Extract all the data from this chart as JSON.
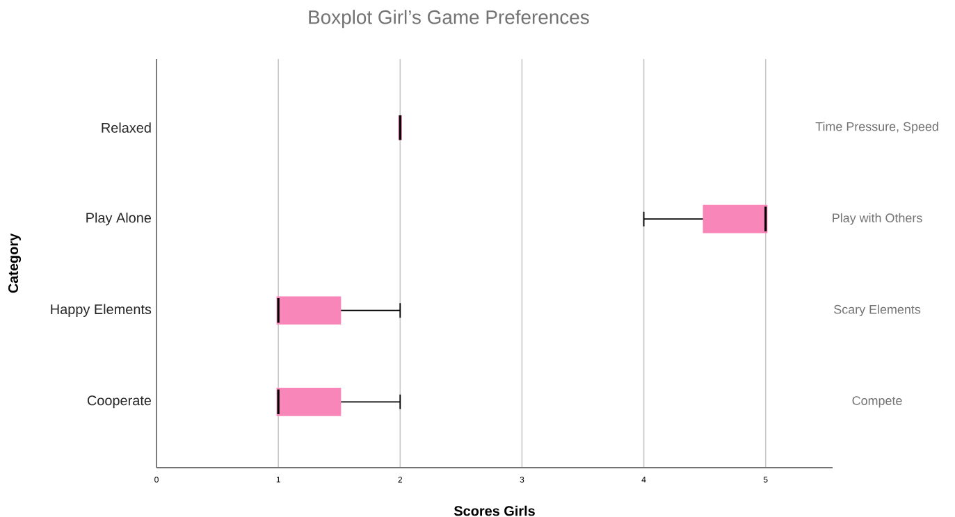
{
  "chart_data": {
    "type": "box",
    "title": "Boxplot Girl’s Game Preferences",
    "xlabel": "Scores Girls",
    "ylabel": "Category",
    "orientation": "horizontal",
    "categories": [
      "Relaxed",
      "Play Alone",
      "Happy Elements",
      "Cooperate"
    ],
    "series": [
      {
        "color": "#f986b8",
        "boxes": [
          {
            "low": 2,
            "q1": 2,
            "median": 2,
            "q3": 2,
            "high": 2
          },
          {
            "low": 4,
            "q1": 4.5,
            "median": 5,
            "q3": 5,
            "high": 5
          },
          {
            "low": 1,
            "q1": 1,
            "median": 1,
            "q3": 1.5,
            "high": 2
          },
          {
            "low": 1,
            "q1": 1,
            "median": 1,
            "q3": 1.5,
            "high": 2
          }
        ]
      }
    ],
    "xlim": [
      0,
      5.55
    ],
    "xticks": [
      0,
      1,
      2,
      3,
      4,
      5
    ],
    "grid": "x",
    "annotations": [
      "Time Pressure, Speed",
      "Play with Others",
      "Scary Elements",
      "Compete"
    ]
  }
}
